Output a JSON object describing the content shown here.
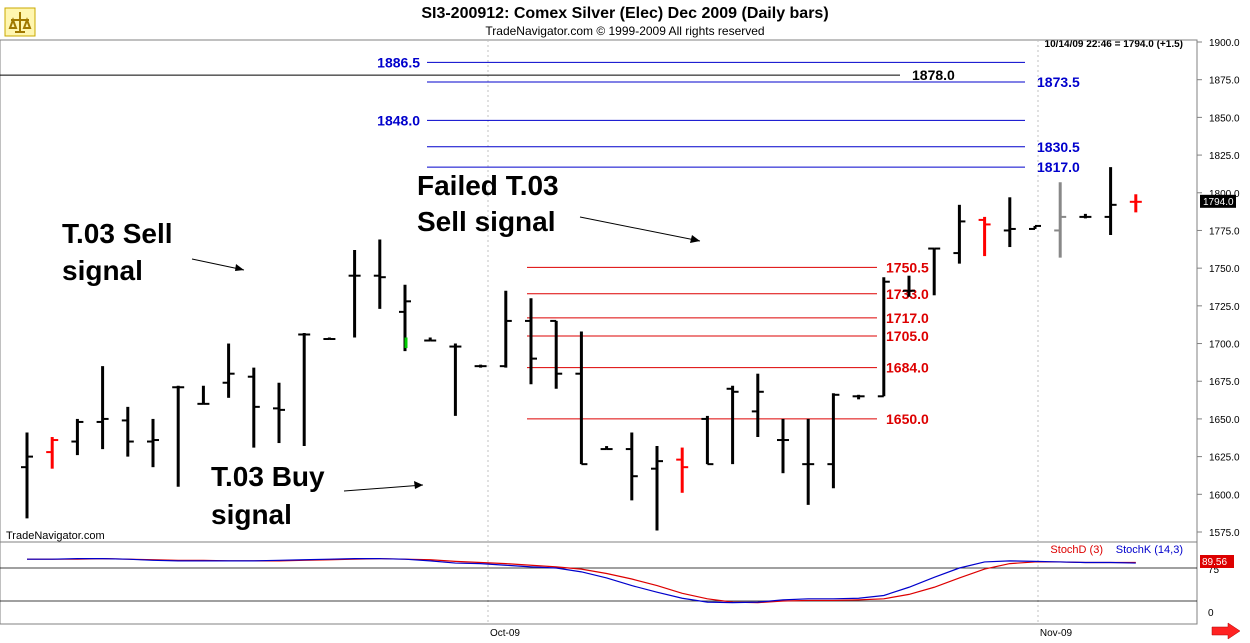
{
  "header": {
    "title": "SI3-200912:  Comex Silver (Elec) Dec 2009  (Daily bars)",
    "subtitle": "TradeNavigator.com © 1999-2009 All rights reserved",
    "quote": "10/14/09 22:46 = 1794.0 (+1.5)",
    "watermark": "TradeNavigator.com"
  },
  "colors": {
    "bar": "#000000",
    "bar_up_signal": "#00cc00",
    "bar_red": "#ff0000",
    "bar_gray": "#888888",
    "target_blue": "#0000cc",
    "target_red": "#dd0000",
    "stoch_d": "#dd0000",
    "stoch_k": "#0000cc",
    "grid": "#c0c0c0"
  },
  "annotations": [
    {
      "id": "sell",
      "text_line1": "T.03 Sell",
      "text_line2": "signal"
    },
    {
      "id": "buy",
      "text_line1": "T.03 Buy",
      "text_line2": "signal"
    },
    {
      "id": "failed",
      "text_line1": "Failed T.03",
      "text_line2": "Sell signal"
    }
  ],
  "indicator": {
    "stochd_label": "StochD (3)",
    "stochk_label": "StochK (14,3)",
    "last_value": "89.56",
    "ticks": [
      "75",
      "0"
    ]
  },
  "chart_data": {
    "type": "ohlc",
    "ylim": [
      1565,
      1910
    ],
    "y_ticks": [
      "1900.0",
      "1875.0",
      "1850.0",
      "1825.0",
      "1800.0",
      "1775.0",
      "1750.0",
      "1725.0",
      "1700.0",
      "1675.0",
      "1650.0",
      "1625.0",
      "1600.0",
      "1575.0"
    ],
    "x_ticks": [
      "Oct-09",
      "Nov-09"
    ],
    "last_price_label": "1794.0",
    "bars": [
      {
        "o": 1618,
        "h": 1641,
        "l": 1584,
        "c": 1625,
        "color": "black"
      },
      {
        "o": 1628,
        "h": 1638,
        "l": 1617,
        "c": 1636,
        "color": "red"
      },
      {
        "o": 1635,
        "h": 1650,
        "l": 1626,
        "c": 1648,
        "color": "black"
      },
      {
        "o": 1648,
        "h": 1685,
        "l": 1630,
        "c": 1650,
        "color": "black"
      },
      {
        "o": 1649,
        "h": 1658,
        "l": 1625,
        "c": 1635,
        "color": "black"
      },
      {
        "o": 1635,
        "h": 1650,
        "l": 1618,
        "c": 1636,
        "color": "black"
      },
      {
        "o": 1671,
        "h": 1672,
        "l": 1605,
        "c": 1671,
        "color": "black"
      },
      {
        "o": 1660,
        "h": 1672,
        "l": 1660,
        "c": 1660,
        "color": "black"
      },
      {
        "o": 1674,
        "h": 1700,
        "l": 1664,
        "c": 1680,
        "color": "black"
      },
      {
        "o": 1678,
        "h": 1684,
        "l": 1631,
        "c": 1658,
        "color": "black"
      },
      {
        "o": 1657,
        "h": 1674,
        "l": 1634,
        "c": 1656,
        "color": "black"
      },
      {
        "o": 1706,
        "h": 1707,
        "l": 1632,
        "c": 1706,
        "color": "black"
      },
      {
        "o": 1703,
        "h": 1704,
        "l": 1703,
        "c": 1703,
        "color": "black"
      },
      {
        "o": 1745,
        "h": 1762,
        "l": 1704,
        "c": 1745,
        "color": "black"
      },
      {
        "o": 1745,
        "h": 1769,
        "l": 1723,
        "c": 1744,
        "color": "black"
      },
      {
        "o": 1721,
        "h": 1739,
        "l": 1695,
        "c": 1728,
        "color": "black"
      },
      {
        "o": 1702,
        "h": 1704,
        "l": 1702,
        "c": 1702,
        "color": "black"
      },
      {
        "o": 1698,
        "h": 1700,
        "l": 1652,
        "c": 1698,
        "color": "black"
      },
      {
        "o": 1685,
        "h": 1686,
        "l": 1684,
        "c": 1685,
        "color": "black"
      },
      {
        "o": 1685,
        "h": 1735,
        "l": 1684,
        "c": 1715,
        "color": "black"
      },
      {
        "o": 1715,
        "h": 1730,
        "l": 1673,
        "c": 1690,
        "color": "black"
      },
      {
        "o": 1715,
        "h": 1715,
        "l": 1670,
        "c": 1680,
        "color": "black"
      },
      {
        "o": 1680,
        "h": 1708,
        "l": 1620,
        "c": 1620,
        "color": "black"
      },
      {
        "o": 1630,
        "h": 1632,
        "l": 1630,
        "c": 1630,
        "color": "black"
      },
      {
        "o": 1630,
        "h": 1641,
        "l": 1596,
        "c": 1612,
        "color": "black"
      },
      {
        "o": 1617,
        "h": 1632,
        "l": 1576,
        "c": 1622,
        "color": "black"
      },
      {
        "o": 1623,
        "h": 1631,
        "l": 1601,
        "c": 1618,
        "color": "red"
      },
      {
        "o": 1650,
        "h": 1652,
        "l": 1620,
        "c": 1620,
        "color": "black"
      },
      {
        "o": 1670,
        "h": 1672,
        "l": 1620,
        "c": 1668,
        "color": "black"
      },
      {
        "o": 1655,
        "h": 1680,
        "l": 1638,
        "c": 1668,
        "color": "black"
      },
      {
        "o": 1636,
        "h": 1650,
        "l": 1614,
        "c": 1636,
        "color": "black"
      },
      {
        "o": 1620,
        "h": 1650,
        "l": 1593,
        "c": 1620,
        "color": "black"
      },
      {
        "o": 1620,
        "h": 1667,
        "l": 1604,
        "c": 1666,
        "color": "black"
      },
      {
        "o": 1665,
        "h": 1666,
        "l": 1663,
        "c": 1665,
        "color": "black"
      },
      {
        "o": 1665,
        "h": 1744,
        "l": 1665,
        "c": 1741,
        "color": "black"
      },
      {
        "o": 1735,
        "h": 1745,
        "l": 1731,
        "c": 1735,
        "color": "black"
      },
      {
        "o": 1763,
        "h": 1763,
        "l": 1732,
        "c": 1763,
        "color": "black"
      },
      {
        "o": 1760,
        "h": 1792,
        "l": 1753,
        "c": 1781,
        "color": "black"
      },
      {
        "o": 1782,
        "h": 1784,
        "l": 1758,
        "c": 1779,
        "color": "red"
      },
      {
        "o": 1775,
        "h": 1797,
        "l": 1764,
        "c": 1776,
        "color": "black"
      },
      {
        "o": 1776,
        "h": 1778,
        "l": 1776,
        "c": 1778,
        "color": "black"
      },
      {
        "o": 1775,
        "h": 1807,
        "l": 1757,
        "c": 1784,
        "color": "gray"
      },
      {
        "o": 1784,
        "h": 1786,
        "l": 1783,
        "c": 1784,
        "color": "black"
      },
      {
        "o": 1784,
        "h": 1817,
        "l": 1772,
        "c": 1792,
        "color": "black"
      },
      {
        "o": 1794,
        "h": 1799,
        "l": 1787,
        "c": 1794,
        "color": "red"
      }
    ],
    "target_lines": [
      {
        "value": 1886.5,
        "label": "1886.5",
        "color": "blue",
        "label_side": "left"
      },
      {
        "value": 1878.0,
        "label": "1878.0",
        "color": "black",
        "label_side": "right"
      },
      {
        "value": 1873.5,
        "label": "1873.5",
        "color": "blue",
        "label_side": "right"
      },
      {
        "value": 1848.0,
        "label": "1848.0",
        "color": "blue",
        "label_side": "left"
      },
      {
        "value": 1830.5,
        "label": "1830.5",
        "color": "blue",
        "label_side": "right"
      },
      {
        "value": 1817.0,
        "label": "1817.0",
        "color": "blue",
        "label_side": "right"
      },
      {
        "value": 1750.5,
        "label": "1750.5",
        "color": "red",
        "label_side": "right"
      },
      {
        "value": 1733.0,
        "label": "1733.0",
        "color": "red",
        "label_side": "right"
      },
      {
        "value": 1717.0,
        "label": "1717.0",
        "color": "red",
        "label_side": "right"
      },
      {
        "value": 1705.0,
        "label": "1705.0",
        "color": "red",
        "label_side": "right"
      },
      {
        "value": 1684.0,
        "label": "1684.0",
        "color": "red",
        "label_side": "right"
      },
      {
        "value": 1650.0,
        "label": "1650.0",
        "color": "red",
        "label_side": "right"
      }
    ],
    "stoch_k": [
      96,
      96,
      97,
      97,
      96,
      94,
      93,
      93,
      93,
      93,
      94,
      95,
      96,
      97,
      97,
      96,
      93,
      89,
      88,
      85,
      82,
      80,
      73,
      62,
      48,
      36,
      25,
      18,
      17,
      18,
      22,
      24,
      24,
      25,
      30,
      45,
      63,
      80,
      91,
      93,
      92,
      91,
      90,
      90,
      89
    ],
    "stoch_d": [
      96,
      96,
      96,
      97,
      96,
      95,
      94,
      94,
      93,
      93,
      93,
      94,
      95,
      96,
      97,
      96,
      95,
      92,
      90,
      88,
      85,
      82,
      78,
      70,
      60,
      48,
      34,
      24,
      18,
      17,
      20,
      21,
      21,
      22,
      24,
      32,
      45,
      62,
      78,
      88,
      91,
      91,
      90,
      90,
      90
    ]
  }
}
